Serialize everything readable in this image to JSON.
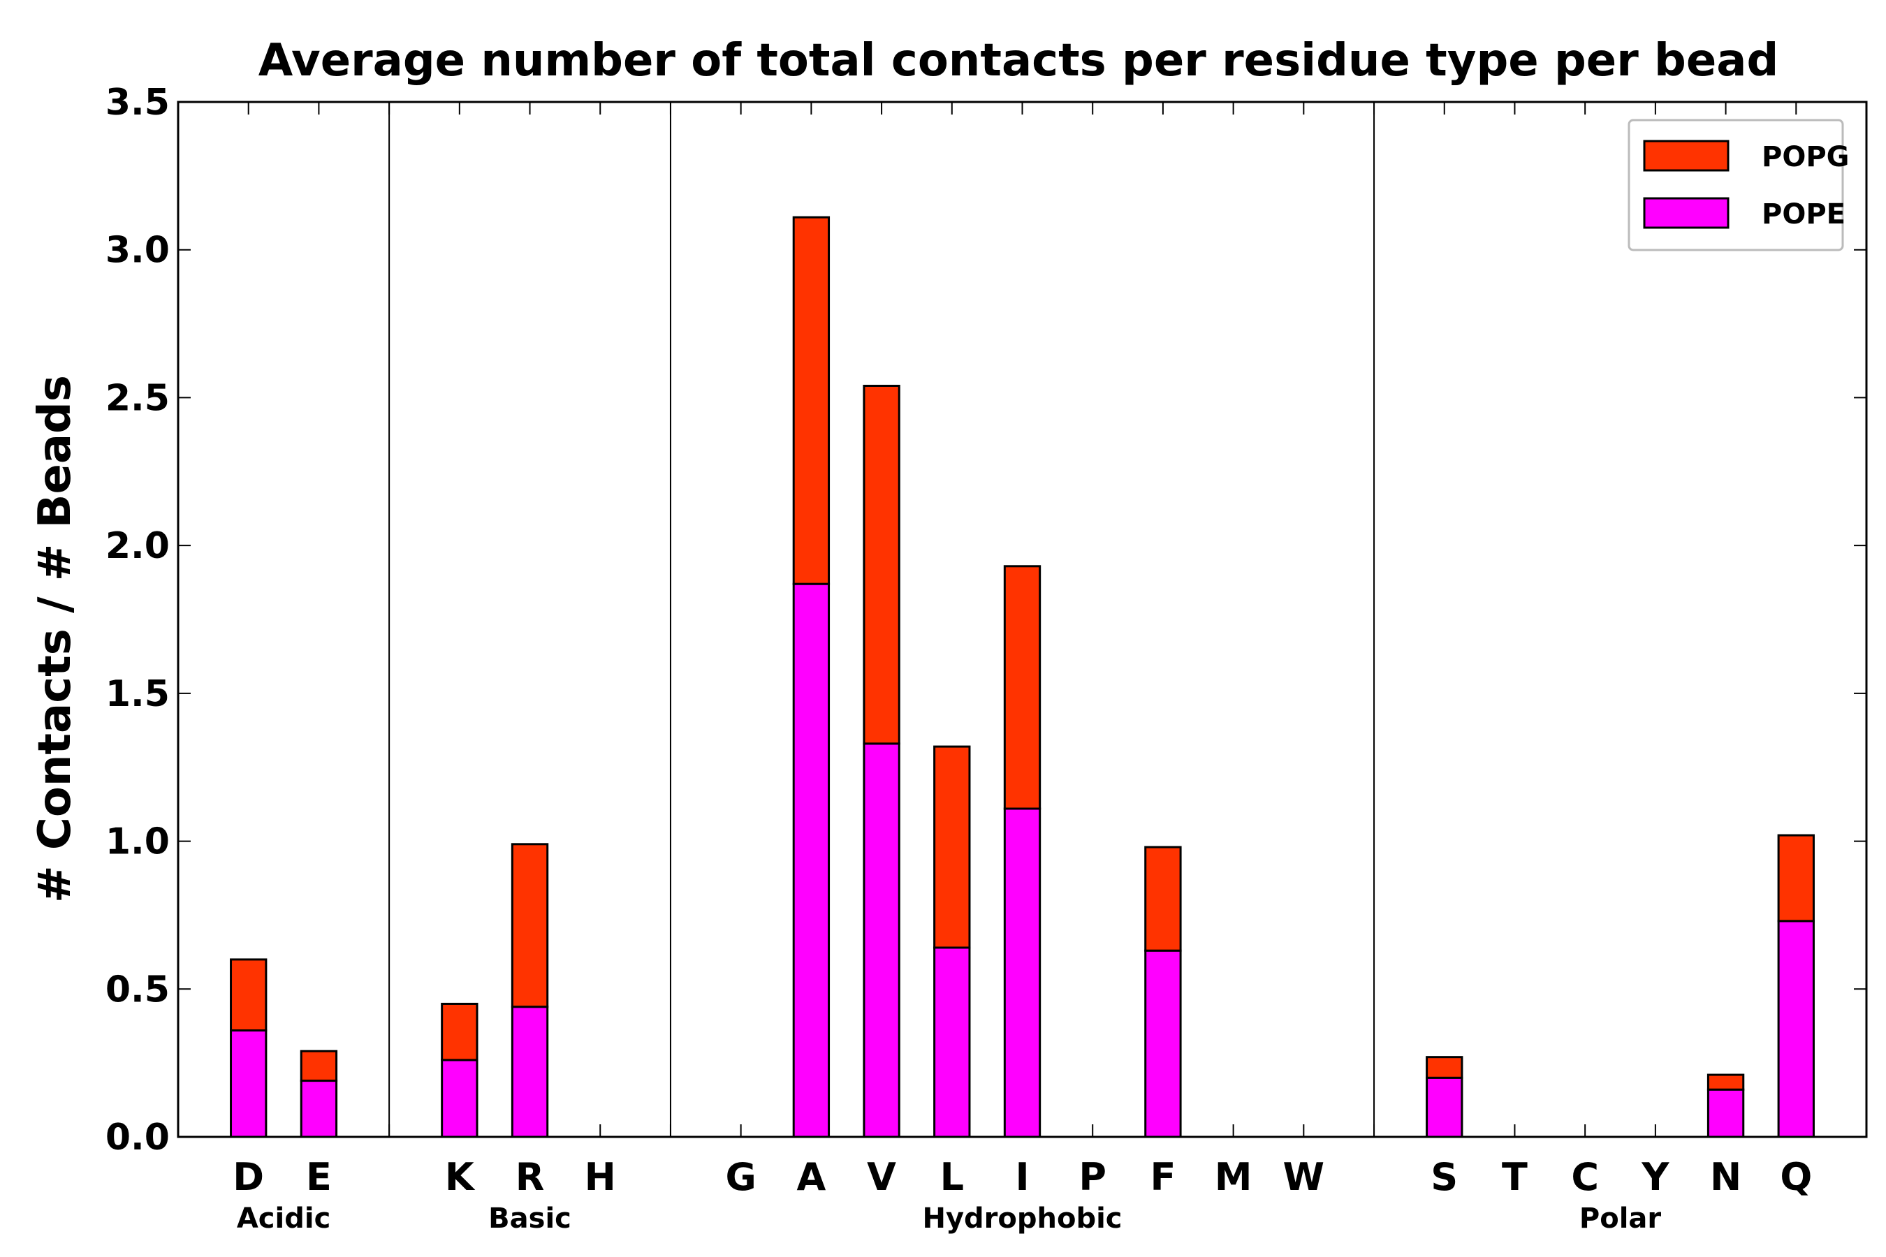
{
  "chart_data": {
    "type": "bar",
    "stacked": true,
    "title": "Average number of total contacts per residue type per bead",
    "xlabel": "",
    "ylabel": "# Contacts / # Beads",
    "ylim": [
      0,
      3.5
    ],
    "yticks": [
      "0.0",
      "0.5",
      "1.0",
      "1.5",
      "2.0",
      "2.5",
      "3.0",
      "3.5"
    ],
    "ytick_values": [
      0,
      0.5,
      1.0,
      1.5,
      2.0,
      2.5,
      3.0,
      3.5
    ],
    "grid": false,
    "legend_position": "top-right",
    "slots": [
      "D",
      "E",
      "",
      "K",
      "R",
      "H",
      "",
      "G",
      "A",
      "V",
      "L",
      "I",
      "P",
      "F",
      "M",
      "W",
      "",
      "S",
      "T",
      "C",
      "Y",
      "N",
      "Q"
    ],
    "categories": [
      "D",
      "E",
      "K",
      "R",
      "H",
      "G",
      "A",
      "V",
      "L",
      "I",
      "P",
      "F",
      "M",
      "W",
      "S",
      "T",
      "C",
      "Y",
      "N",
      "Q"
    ],
    "series": [
      {
        "name": "POPE",
        "color": "#ff00ff",
        "values": [
          0.36,
          0.19,
          0.26,
          0.44,
          0,
          0,
          1.87,
          1.33,
          0.64,
          1.11,
          0,
          0.63,
          0,
          0,
          0.2,
          0,
          0,
          0,
          0.16,
          0.73
        ]
      },
      {
        "name": "POPG",
        "color": "#ff3300",
        "values": [
          0.24,
          0.1,
          0.19,
          0.55,
          0,
          0,
          1.24,
          1.21,
          0.68,
          0.82,
          0,
          0.35,
          0,
          0,
          0.07,
          0,
          0,
          0,
          0.05,
          0.29
        ]
      }
    ],
    "groups": [
      {
        "name": "Acidic",
        "members": [
          "D",
          "E"
        ]
      },
      {
        "name": "Basic",
        "members": [
          "K",
          "R",
          "H"
        ]
      },
      {
        "name": "Hydrophobic",
        "members": [
          "G",
          "A",
          "V",
          "L",
          "I",
          "P",
          "F",
          "M",
          "W"
        ]
      },
      {
        "name": "Polar",
        "members": [
          "S",
          "T",
          "C",
          "Y",
          "N",
          "Q"
        ]
      }
    ],
    "legend": [
      {
        "name": "POPG",
        "color": "#ff3300"
      },
      {
        "name": "POPE",
        "color": "#ff00ff"
      }
    ]
  }
}
